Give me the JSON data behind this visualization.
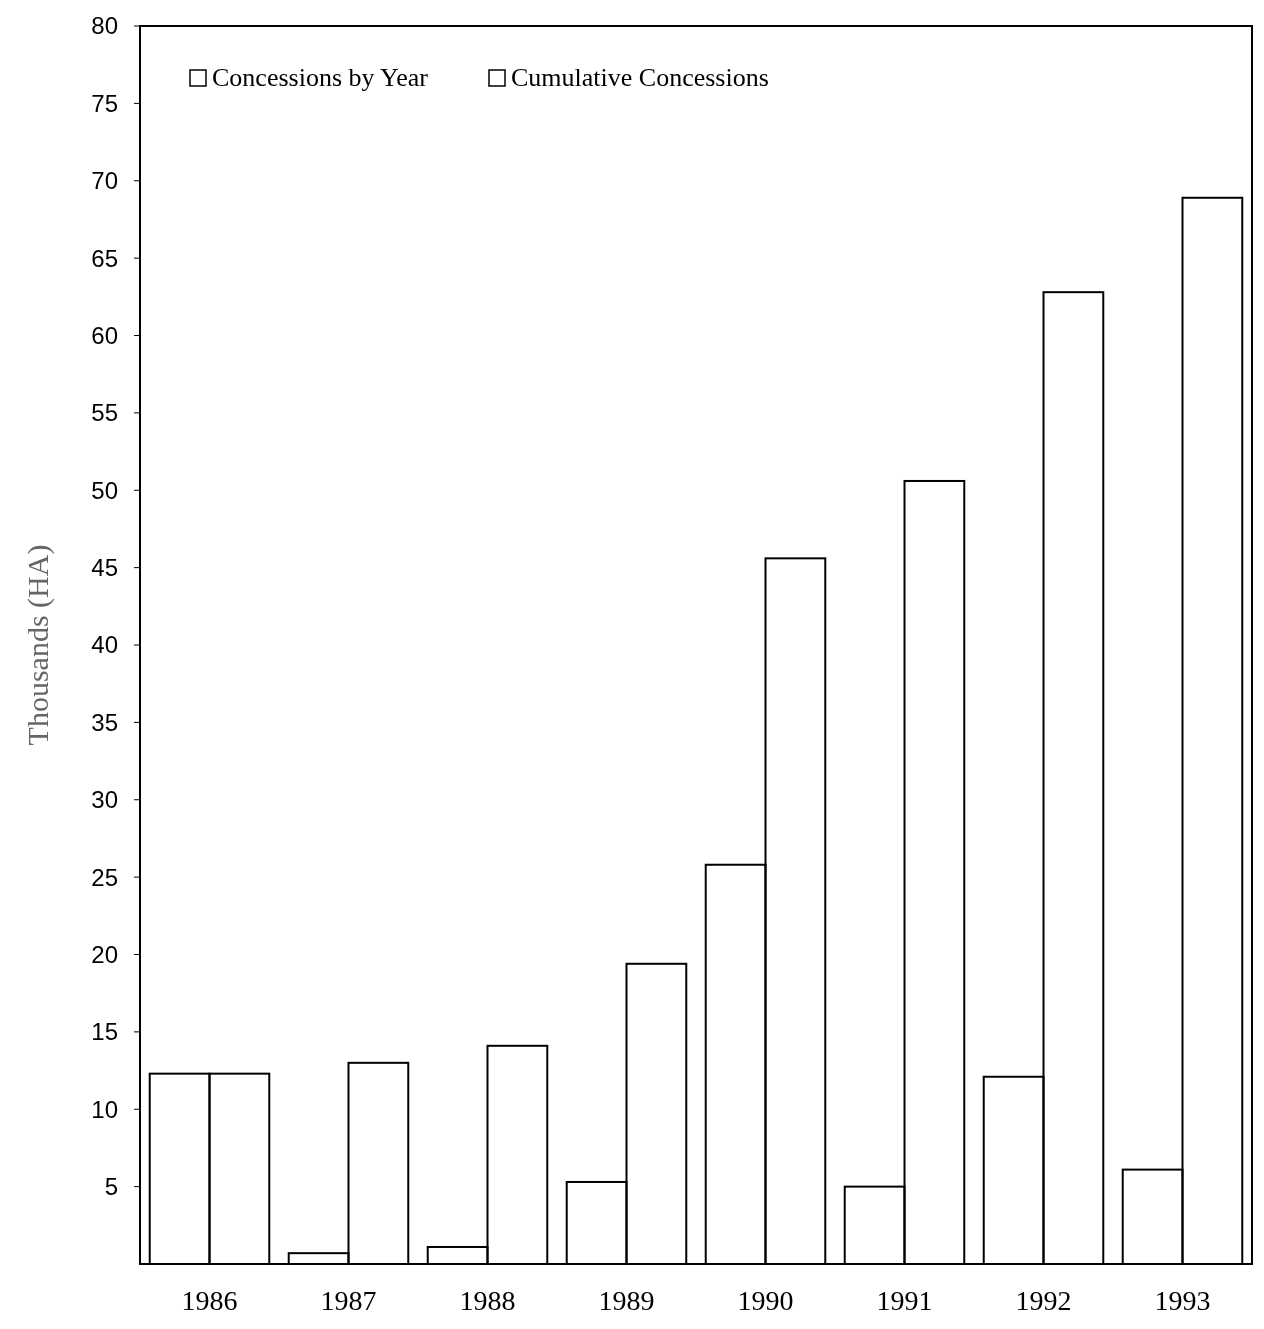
{
  "chart_data": {
    "type": "bar",
    "categories": [
      "1986",
      "1987",
      "1988",
      "1989",
      "1990",
      "1991",
      "1992",
      "1993"
    ],
    "series": [
      {
        "name": "Concessions by Year",
        "color": "#000000",
        "values": [
          12.3,
          0.7,
          1.1,
          5.3,
          25.8,
          5.0,
          12.1,
          6.1
        ]
      },
      {
        "name": "Cumulative Concessions",
        "color": "#000000",
        "values": [
          12.3,
          13.0,
          14.1,
          19.4,
          45.6,
          50.6,
          62.8,
          68.9
        ]
      }
    ],
    "ylim": [
      0,
      80
    ],
    "yticks": [
      5,
      10,
      15,
      20,
      25,
      30,
      35,
      40,
      45,
      50,
      55,
      60,
      65,
      70,
      75,
      80
    ],
    "ylabel": "Thousands (HA)",
    "legend": "top left",
    "grid": false
  }
}
